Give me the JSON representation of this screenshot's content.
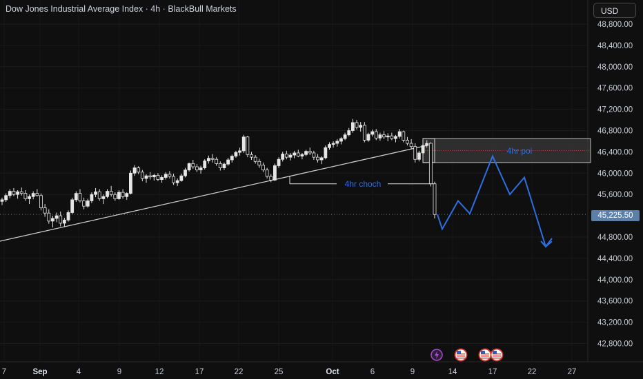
{
  "header": {
    "title": "Dow Jones Industrial Average Index · 4h · BlackBull Markets",
    "currency": "USD"
  },
  "colors": {
    "background": "#0f0f0f",
    "candle": "#e6e6e6",
    "trendline": "#d0d0d0",
    "projection": "#2f6fe4",
    "poi_zone": "#3a3a3a",
    "last_price_badge": "#5b7fa6"
  },
  "chart_data": {
    "type": "candlestick",
    "symbol": "Dow Jones Industrial Average Index",
    "interval": "4h",
    "y_axis": {
      "ticks": [
        "48,800.00",
        "48,400.00",
        "48,000.00",
        "47,600.00",
        "47,200.00",
        "46,800.00",
        "46,400.00",
        "46,000.00",
        "45,600.00",
        "44,800.00",
        "44,400.00",
        "44,000.00",
        "43,600.00",
        "43,200.00",
        "42,800.00"
      ],
      "ylim": [
        42600,
        49100
      ]
    },
    "x_axis": {
      "ticks": [
        "7",
        "Sep",
        "4",
        "9",
        "12",
        "17",
        "22",
        "25",
        "Oct",
        "6",
        "9",
        "14",
        "17",
        "22",
        "27"
      ]
    },
    "last_price": "45,225.50",
    "annotations": {
      "poi_label": "4hr poi",
      "choch_label": "4hr choch"
    },
    "candles": [
      [
        45470,
        45540,
        45400,
        45500
      ],
      [
        45500,
        45620,
        45460,
        45580
      ],
      [
        45580,
        45700,
        45530,
        45660
      ],
      [
        45660,
        45720,
        45570,
        45600
      ],
      [
        45600,
        45680,
        45520,
        45650
      ],
      [
        45650,
        45730,
        45580,
        45620
      ],
      [
        45620,
        45680,
        45480,
        45520
      ],
      [
        45520,
        45600,
        45420,
        45560
      ],
      [
        45560,
        45660,
        45510,
        45620
      ],
      [
        45620,
        45700,
        45560,
        45580
      ],
      [
        45580,
        45620,
        45300,
        45350
      ],
      [
        45350,
        45420,
        45180,
        45250
      ],
      [
        45250,
        45320,
        45050,
        45100
      ],
      [
        45100,
        45200,
        44980,
        45150
      ],
      [
        45150,
        45260,
        45080,
        45200
      ],
      [
        45200,
        45280,
        45000,
        45060
      ],
      [
        45060,
        45160,
        44990,
        45120
      ],
      [
        45120,
        45300,
        45090,
        45260
      ],
      [
        45260,
        45540,
        45230,
        45500
      ],
      [
        45500,
        45660,
        45460,
        45620
      ],
      [
        45620,
        45700,
        45450,
        45480
      ],
      [
        45480,
        45540,
        45320,
        45380
      ],
      [
        45380,
        45520,
        45350,
        45480
      ],
      [
        45480,
        45640,
        45440,
        45600
      ],
      [
        45600,
        45720,
        45550,
        45650
      ],
      [
        45650,
        45700,
        45480,
        45520
      ],
      [
        45520,
        45600,
        45420,
        45560
      ],
      [
        45560,
        45700,
        45530,
        45660
      ],
      [
        45660,
        45760,
        45560,
        45600
      ],
      [
        45600,
        45640,
        45480,
        45520
      ],
      [
        45520,
        45680,
        45500,
        45640
      ],
      [
        45640,
        45700,
        45520,
        45560
      ],
      [
        45560,
        45640,
        45500,
        45620
      ],
      [
        45620,
        46050,
        45600,
        46000
      ],
      [
        46000,
        46150,
        45950,
        46100
      ],
      [
        46100,
        46130,
        45980,
        46020
      ],
      [
        46020,
        46060,
        45850,
        45900
      ],
      [
        45900,
        45980,
        45820,
        45950
      ],
      [
        45950,
        46020,
        45880,
        45930
      ],
      [
        45930,
        45990,
        45860,
        45960
      ],
      [
        45960,
        46000,
        45850,
        45880
      ],
      [
        45880,
        45960,
        45820,
        45920
      ],
      [
        45920,
        46020,
        45880,
        45980
      ],
      [
        45980,
        46040,
        45900,
        45940
      ],
      [
        45940,
        45990,
        45780,
        45820
      ],
      [
        45820,
        45900,
        45760,
        45860
      ],
      [
        45860,
        45990,
        45840,
        45950
      ],
      [
        45950,
        46100,
        45920,
        46060
      ],
      [
        46060,
        46200,
        46030,
        46180
      ],
      [
        46180,
        46250,
        46080,
        46120
      ],
      [
        46120,
        46170,
        46020,
        46060
      ],
      [
        46060,
        46140,
        45990,
        46100
      ],
      [
        46100,
        46260,
        46070,
        46230
      ],
      [
        46230,
        46330,
        46180,
        46280
      ],
      [
        46280,
        46360,
        46200,
        46260
      ],
      [
        46260,
        46300,
        46140,
        46180
      ],
      [
        46180,
        46220,
        46050,
        46100
      ],
      [
        46100,
        46200,
        46060,
        46170
      ],
      [
        46170,
        46290,
        46140,
        46250
      ],
      [
        46250,
        46350,
        46200,
        46320
      ],
      [
        46320,
        46420,
        46290,
        46390
      ],
      [
        46390,
        46480,
        46330,
        46420
      ],
      [
        46420,
        46720,
        46380,
        46680
      ],
      [
        46680,
        46700,
        46300,
        46350
      ],
      [
        46350,
        46400,
        46250,
        46300
      ],
      [
        46300,
        46340,
        46180,
        46220
      ],
      [
        46220,
        46270,
        46100,
        46150
      ],
      [
        46150,
        46200,
        46020,
        46060
      ],
      [
        46060,
        46100,
        45900,
        45940
      ],
      [
        45940,
        45980,
        45830,
        45870
      ],
      [
        45870,
        46180,
        45850,
        46140
      ],
      [
        46140,
        46300,
        46100,
        46260
      ],
      [
        46260,
        46400,
        46220,
        46360
      ],
      [
        46360,
        46420,
        46260,
        46300
      ],
      [
        46300,
        46380,
        46240,
        46340
      ],
      [
        46340,
        46420,
        46280,
        46380
      ],
      [
        46380,
        46440,
        46300,
        46320
      ],
      [
        46320,
        46380,
        46260,
        46350
      ],
      [
        46350,
        46440,
        46320,
        46410
      ],
      [
        46410,
        46480,
        46340,
        46380
      ],
      [
        46380,
        46420,
        46250,
        46300
      ],
      [
        46300,
        46360,
        46200,
        46250
      ],
      [
        46250,
        46320,
        46170,
        46290
      ],
      [
        46290,
        46520,
        46260,
        46480
      ],
      [
        46480,
        46580,
        46440,
        46540
      ],
      [
        46540,
        46600,
        46480,
        46560
      ],
      [
        46560,
        46640,
        46500,
        46600
      ],
      [
        46600,
        46680,
        46540,
        46650
      ],
      [
        46650,
        46760,
        46620,
        46720
      ],
      [
        46720,
        46850,
        46690,
        46800
      ],
      [
        46800,
        47020,
        46760,
        46950
      ],
      [
        46950,
        47000,
        46820,
        46860
      ],
      [
        46860,
        46960,
        46780,
        46900
      ],
      [
        46900,
        46960,
        46580,
        46620
      ],
      [
        46620,
        46760,
        46590,
        46730
      ],
      [
        46730,
        46820,
        46690,
        46780
      ],
      [
        46780,
        46830,
        46620,
        46660
      ],
      [
        46660,
        46760,
        46610,
        46720
      ],
      [
        46720,
        46790,
        46640,
        46680
      ],
      [
        46680,
        46750,
        46600,
        46700
      ],
      [
        46700,
        46760,
        46620,
        46650
      ],
      [
        46650,
        46720,
        46580,
        46690
      ],
      [
        46690,
        46830,
        46650,
        46780
      ],
      [
        46780,
        46800,
        46580,
        46620
      ],
      [
        46620,
        46680,
        46520,
        46560
      ],
      [
        46560,
        46640,
        46460,
        46500
      ],
      [
        46500,
        46560,
        46200,
        46260
      ],
      [
        46260,
        46420,
        46220,
        46380
      ],
      [
        46380,
        46560,
        46340,
        46520
      ],
      [
        46520,
        46620,
        46480,
        46560
      ],
      [
        46560,
        46580,
        45750,
        45800
      ],
      [
        45800,
        45840,
        45150,
        45225
      ]
    ],
    "projection_path": [
      {
        "date": "Oct 10",
        "price": 45225
      },
      {
        "date": "Oct 11",
        "price": 44950
      },
      {
        "date": "Oct 14",
        "price": 45480
      },
      {
        "date": "Oct 15",
        "price": 45240
      },
      {
        "date": "Oct 17",
        "price": 46320
      },
      {
        "date": "Oct 19",
        "price": 45600
      },
      {
        "date": "Oct 21",
        "price": 45920
      },
      {
        "date": "Oct 24",
        "price": 44620
      },
      {
        "date": "Oct 24",
        "price": 44720
      }
    ],
    "poi_zone": {
      "price_top": 46650,
      "price_bottom": 46200,
      "from": "Oct 9",
      "to": "Oct 27+"
    },
    "choch_level": 45800,
    "trendline": [
      {
        "date": "Aug 26",
        "price": 44620
      },
      {
        "date": "Oct 10",
        "price": 46550
      }
    ]
  }
}
